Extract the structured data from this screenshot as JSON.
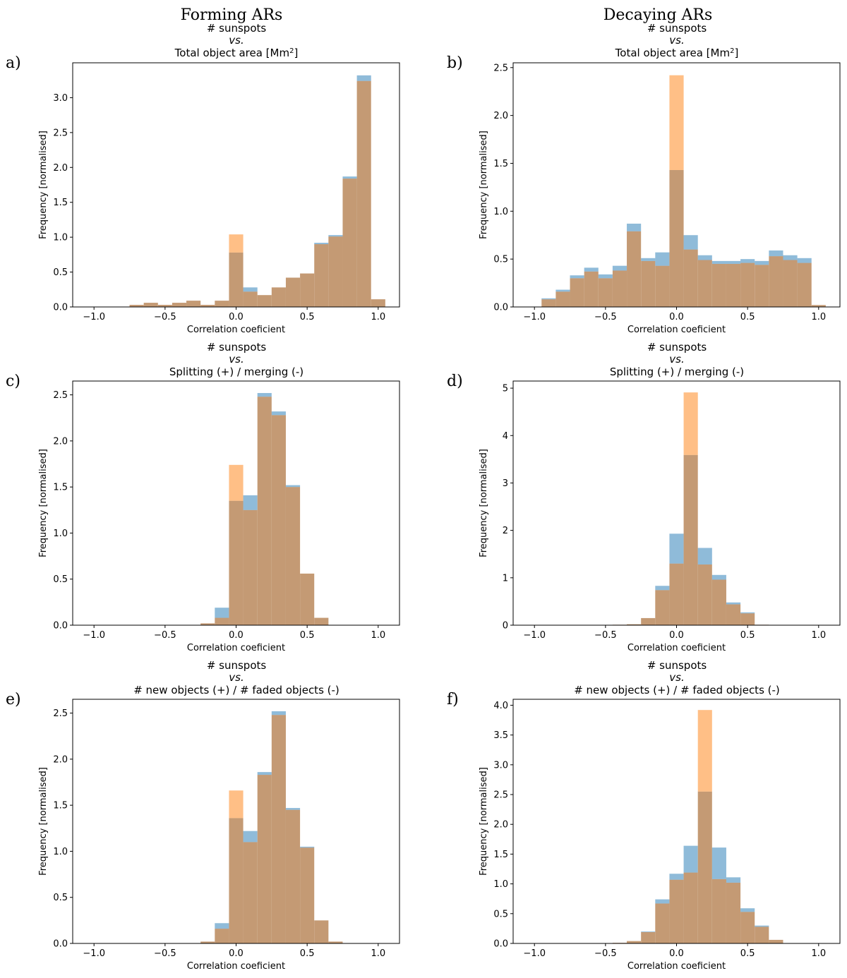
{
  "headers": {
    "left": "Forming ARs",
    "right": "Decaying ARs"
  },
  "colors": {
    "blue": "#1f77b4",
    "orange": "#ff7f0e",
    "overlap": "#c49a74"
  },
  "chart_data": [
    {
      "type": "bar",
      "panel": "a)",
      "title": [
        "# sunspots",
        "vs.",
        "Total object area [Mm²]"
      ],
      "xlabel": "Correlation coeficient",
      "ylabel": "Frequency [normalised]",
      "xlim": [
        -1.15,
        1.15
      ],
      "ylim": [
        0,
        3.5
      ],
      "xticks": [
        -1.0,
        -0.5,
        0.0,
        0.5,
        1.0
      ],
      "xtick_labels": [
        "−1.0",
        "−0.5",
        "0.0",
        "0.5",
        "1.0"
      ],
      "yticks": [
        0.0,
        0.5,
        1.0,
        1.5,
        2.0,
        2.5,
        3.0
      ],
      "ytick_labels": [
        "0.0",
        "0.5",
        "1.0",
        "1.5",
        "2.0",
        "2.5",
        "3.0"
      ],
      "bin_start": -1.05,
      "bin_width": 0.1,
      "series": [
        {
          "name": "blue",
          "values": [
            0,
            0,
            0,
            0.03,
            0.06,
            0.03,
            0.06,
            0.09,
            0.03,
            0.09,
            0.78,
            0.28,
            0.17,
            0.28,
            0.42,
            0.48,
            0.92,
            1.03,
            1.87,
            3.32,
            0.11
          ]
        },
        {
          "name": "orange",
          "values": [
            0,
            0,
            0,
            0.03,
            0.06,
            0.03,
            0.06,
            0.09,
            0.03,
            0.09,
            1.04,
            0.22,
            0.17,
            0.28,
            0.42,
            0.48,
            0.9,
            1.01,
            1.84,
            3.24,
            0.11
          ]
        }
      ]
    },
    {
      "type": "bar",
      "panel": "b)",
      "title": [
        "# sunspots",
        "vs.",
        "Total object area [Mm²]"
      ],
      "xlabel": "Correlation coeficient",
      "ylabel": "Frequency [normalised]",
      "xlim": [
        -1.15,
        1.15
      ],
      "ylim": [
        0,
        2.55
      ],
      "xticks": [
        -1.0,
        -0.5,
        0.0,
        0.5,
        1.0
      ],
      "xtick_labels": [
        "−1.0",
        "−0.5",
        "0.0",
        "0.5",
        "1.0"
      ],
      "yticks": [
        0.0,
        0.5,
        1.0,
        1.5,
        2.0,
        2.5
      ],
      "ytick_labels": [
        "0.0",
        "0.5",
        "1.0",
        "1.5",
        "2.0",
        "2.5"
      ],
      "bin_start": -1.05,
      "bin_width": 0.1,
      "series": [
        {
          "name": "blue",
          "values": [
            0,
            0.09,
            0.18,
            0.33,
            0.41,
            0.34,
            0.43,
            0.87,
            0.51,
            0.57,
            1.43,
            0.75,
            0.54,
            0.48,
            0.48,
            0.5,
            0.48,
            0.59,
            0.54,
            0.51,
            0.02
          ]
        },
        {
          "name": "orange",
          "values": [
            0,
            0.08,
            0.16,
            0.3,
            0.37,
            0.3,
            0.38,
            0.79,
            0.48,
            0.43,
            2.42,
            0.6,
            0.49,
            0.45,
            0.45,
            0.46,
            0.44,
            0.53,
            0.49,
            0.46,
            0.02
          ]
        }
      ]
    },
    {
      "type": "bar",
      "panel": "c)",
      "title": [
        "# sunspots",
        "vs.",
        "Splitting (+) / merging (-)"
      ],
      "xlabel": "Correlation coeficient",
      "ylabel": "Frequency [normalised]",
      "xlim": [
        -1.15,
        1.15
      ],
      "ylim": [
        0,
        2.65
      ],
      "xticks": [
        -1.0,
        -0.5,
        0.0,
        0.5,
        1.0
      ],
      "xtick_labels": [
        "−1.0",
        "−0.5",
        "0.0",
        "0.5",
        "1.0"
      ],
      "yticks": [
        0.0,
        0.5,
        1.0,
        1.5,
        2.0,
        2.5
      ],
      "ytick_labels": [
        "0.0",
        "0.5",
        "1.0",
        "1.5",
        "2.0",
        "2.5"
      ],
      "bin_start": -1.05,
      "bin_width": 0.1,
      "series": [
        {
          "name": "blue",
          "values": [
            0,
            0,
            0,
            0,
            0,
            0,
            0,
            0,
            0.02,
            0.19,
            1.35,
            1.41,
            2.52,
            2.32,
            1.52,
            0.56,
            0.08,
            0,
            0,
            0,
            0
          ]
        },
        {
          "name": "orange",
          "values": [
            0,
            0,
            0,
            0,
            0,
            0,
            0,
            0,
            0.02,
            0.08,
            1.74,
            1.25,
            2.48,
            2.28,
            1.5,
            0.56,
            0.08,
            0,
            0,
            0,
            0
          ]
        }
      ]
    },
    {
      "type": "bar",
      "panel": "d)",
      "title": [
        "# sunspots",
        "vs.",
        "Splitting (+) / merging (-)"
      ],
      "xlabel": "Correlation coeficient",
      "ylabel": "Frequency [normalised]",
      "xlim": [
        -1.15,
        1.15
      ],
      "ylim": [
        0,
        5.15
      ],
      "xticks": [
        -1.0,
        -0.5,
        0.0,
        0.5,
        1.0
      ],
      "xtick_labels": [
        "−1.0",
        "−0.5",
        "0.0",
        "0.5",
        "1.0"
      ],
      "yticks": [
        0,
        1,
        2,
        3,
        4,
        5
      ],
      "ytick_labels": [
        "0",
        "1",
        "2",
        "3",
        "4",
        "5"
      ],
      "bin_start": -1.05,
      "bin_width": 0.1,
      "series": [
        {
          "name": "blue",
          "values": [
            0,
            0,
            0,
            0,
            0,
            0,
            0.01,
            0.02,
            0.15,
            0.83,
            1.93,
            3.59,
            1.63,
            1.06,
            0.48,
            0.27,
            0.01,
            0,
            0,
            0,
            0
          ]
        },
        {
          "name": "orange",
          "values": [
            0,
            0,
            0,
            0,
            0,
            0,
            0.01,
            0.02,
            0.15,
            0.74,
            1.3,
            4.91,
            1.28,
            0.96,
            0.44,
            0.25,
            0.01,
            0,
            0,
            0,
            0
          ]
        }
      ]
    },
    {
      "type": "bar",
      "panel": "e)",
      "title": [
        "# sunspots",
        "vs.",
        "# new objects (+) / # faded objects (-)"
      ],
      "xlabel": "Correlation coeficient",
      "ylabel": "Frequency [normalised]",
      "xlim": [
        -1.15,
        1.15
      ],
      "ylim": [
        0,
        2.65
      ],
      "xticks": [
        -1.0,
        -0.5,
        0.0,
        0.5,
        1.0
      ],
      "xtick_labels": [
        "−1.0",
        "−0.5",
        "0.0",
        "0.5",
        "1.0"
      ],
      "yticks": [
        0.0,
        0.5,
        1.0,
        1.5,
        2.0,
        2.5
      ],
      "ytick_labels": [
        "0.0",
        "0.5",
        "1.0",
        "1.5",
        "2.0",
        "2.5"
      ],
      "bin_start": -1.05,
      "bin_width": 0.1,
      "series": [
        {
          "name": "blue",
          "values": [
            0,
            0,
            0,
            0,
            0,
            0,
            0,
            0,
            0.02,
            0.22,
            1.36,
            1.22,
            1.86,
            2.52,
            1.47,
            1.05,
            0.25,
            0.02,
            0,
            0,
            0
          ]
        },
        {
          "name": "orange",
          "values": [
            0,
            0,
            0,
            0,
            0,
            0,
            0,
            0,
            0.02,
            0.16,
            1.66,
            1.1,
            1.83,
            2.48,
            1.45,
            1.04,
            0.25,
            0.02,
            0,
            0,
            0
          ]
        }
      ]
    },
    {
      "type": "bar",
      "panel": "f)",
      "title": [
        "# sunspots",
        "vs.",
        "# new objects (+) / # faded objects (-)"
      ],
      "xlabel": "Correlation coeficient",
      "ylabel": "Frequency [normalised]",
      "xlim": [
        -1.15,
        1.15
      ],
      "ylim": [
        0,
        4.1
      ],
      "xticks": [
        -1.0,
        -0.5,
        0.0,
        0.5,
        1.0
      ],
      "xtick_labels": [
        "−1.0",
        "−0.5",
        "0.0",
        "0.5",
        "1.0"
      ],
      "yticks": [
        0.0,
        0.5,
        1.0,
        1.5,
        2.0,
        2.5,
        3.0,
        3.5,
        4.0
      ],
      "ytick_labels": [
        "0.0",
        "0.5",
        "1.0",
        "1.5",
        "2.0",
        "2.5",
        "3.0",
        "3.5",
        "4.0"
      ],
      "bin_start": -1.05,
      "bin_width": 0.1,
      "series": [
        {
          "name": "blue",
          "values": [
            0,
            0,
            0,
            0,
            0,
            0,
            0.01,
            0.04,
            0.2,
            0.74,
            1.17,
            1.64,
            2.55,
            1.61,
            1.11,
            0.59,
            0.3,
            0.06,
            0,
            0,
            0
          ]
        },
        {
          "name": "orange",
          "values": [
            0,
            0,
            0,
            0,
            0,
            0,
            0.01,
            0.04,
            0.19,
            0.67,
            1.07,
            1.19,
            3.92,
            1.08,
            1.02,
            0.53,
            0.28,
            0.06,
            0,
            0,
            0
          ]
        }
      ]
    }
  ]
}
